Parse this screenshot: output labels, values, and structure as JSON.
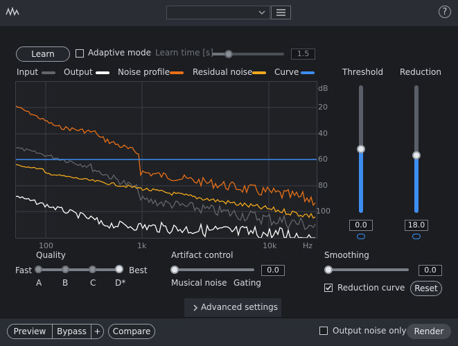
{
  "header": {
    "preset_value": "",
    "help": "?"
  },
  "controls": {
    "learn_label": "Learn",
    "adaptive_mode_label": "Adaptive mode",
    "adaptive_mode_checked": false,
    "learn_time_label": "Learn time [s]",
    "learn_time_value": "1.5"
  },
  "legend": [
    {
      "label": "Input",
      "color": "#62666c"
    },
    {
      "label": "Output",
      "color": "#ffffff"
    },
    {
      "label": "Noise profile",
      "color": "#e8701a"
    },
    {
      "label": "Residual noise",
      "color": "#f2a81c"
    },
    {
      "label": "Curve",
      "color": "#3d8ef0"
    }
  ],
  "plot": {
    "db_label": "dB",
    "db_ticks": [
      "20",
      "40",
      "60",
      "80",
      "100"
    ],
    "hz_ticks": [
      "100",
      "1k",
      "10k",
      "Hz"
    ]
  },
  "threshold": {
    "label": "Threshold",
    "value": "0.0"
  },
  "reduction": {
    "label": "Reduction",
    "value": "18.0"
  },
  "quality": {
    "label": "Quality",
    "fast": "Fast",
    "best": "Best",
    "levels": [
      "A",
      "B",
      "C",
      "D*"
    ]
  },
  "artifact": {
    "label": "Artifact control",
    "value": "0.0",
    "left": "Musical noise",
    "right": "Gating"
  },
  "smoothing": {
    "label": "Smoothing",
    "value": "0.0"
  },
  "reduction_curve": {
    "label": "Reduction curve",
    "checked": true
  },
  "reset_label": "Reset",
  "advanced_label": "Advanced settings",
  "footer": {
    "preview": "Preview",
    "bypass": "Bypass",
    "plus": "+",
    "compare": "Compare",
    "output_noise_only": "Output noise only",
    "render": "Render"
  }
}
